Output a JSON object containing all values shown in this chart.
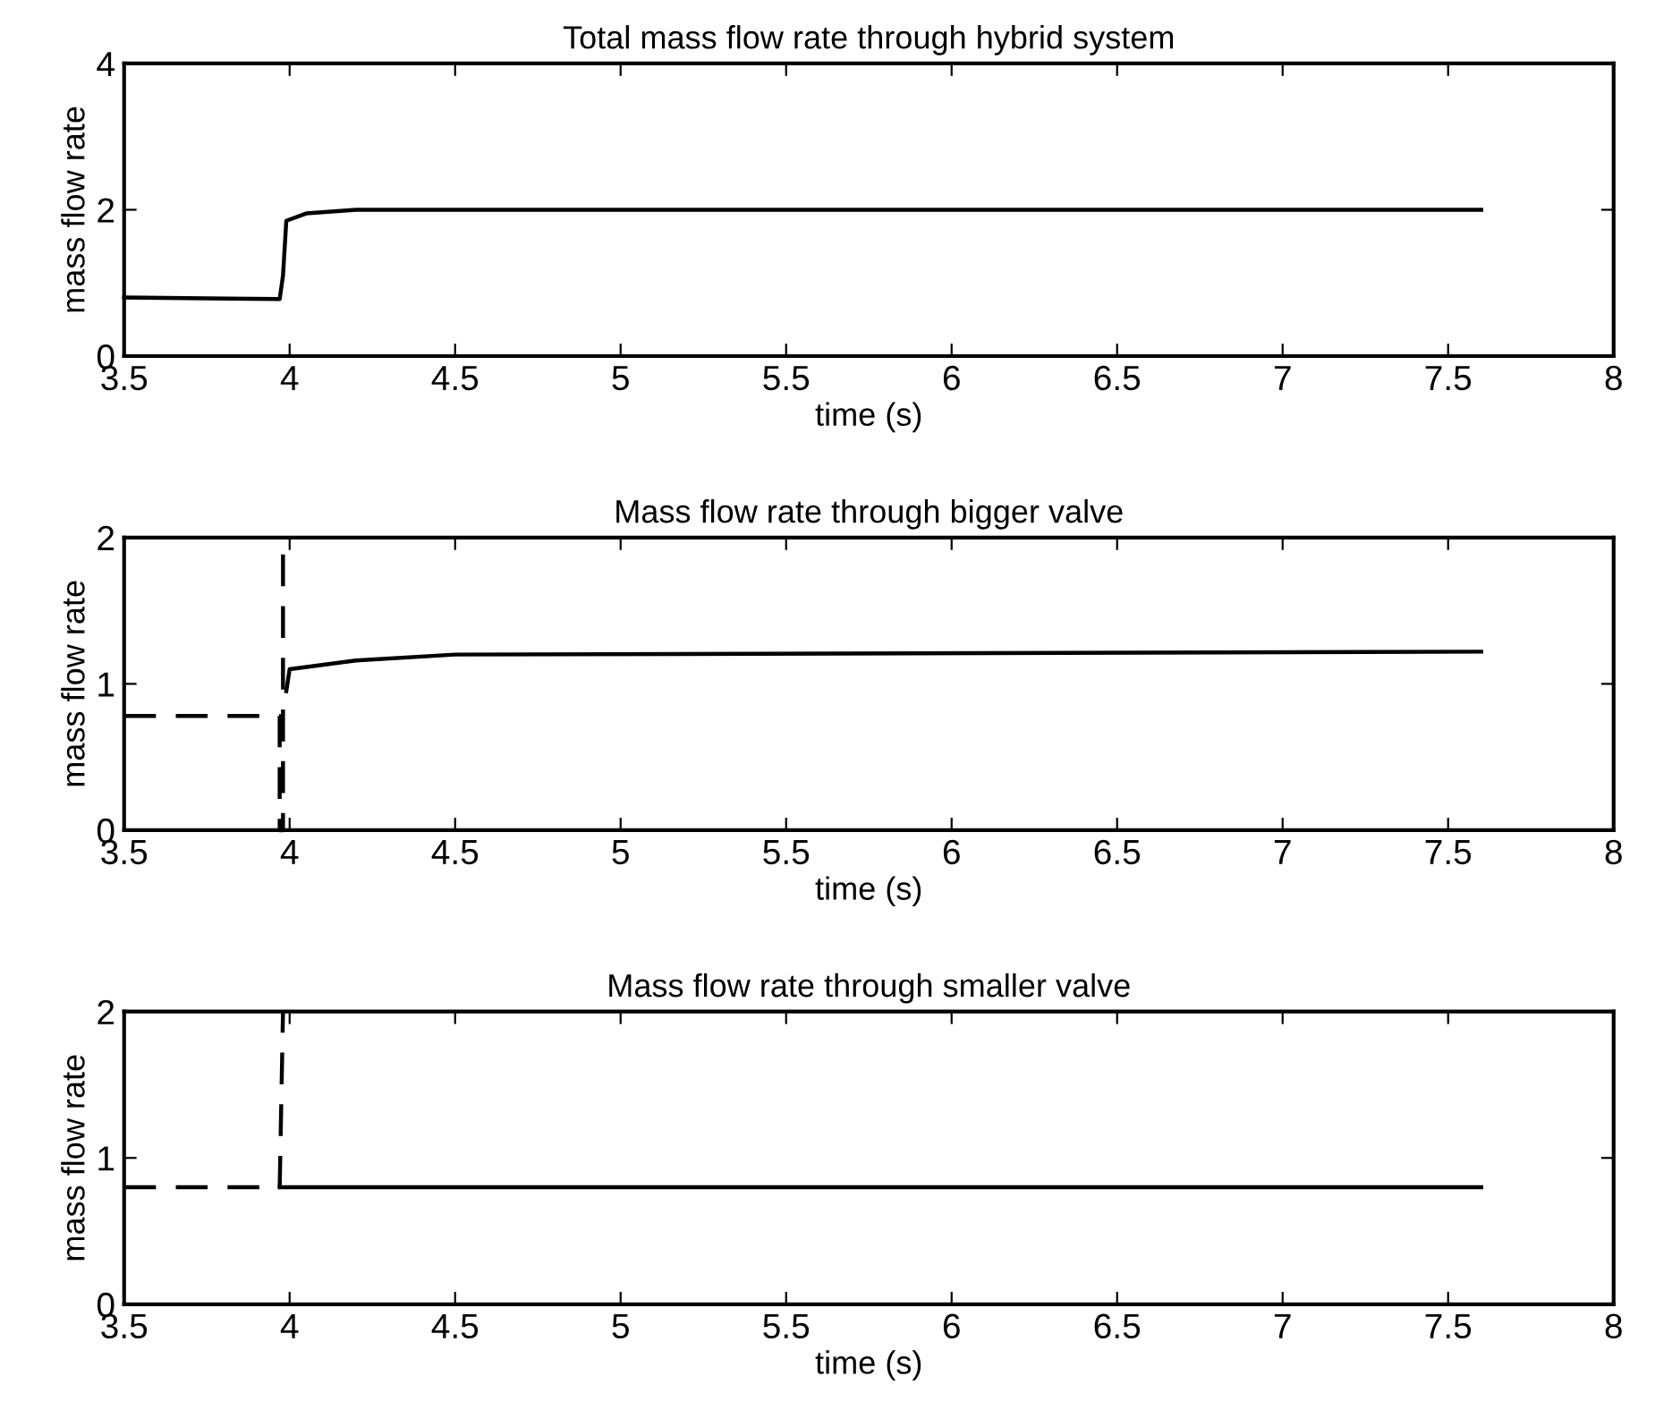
{
  "chart_data": [
    {
      "type": "line",
      "title": "Total mass flow rate through hybrid system",
      "xlabel": "time (s)",
      "ylabel": "mass flow rate",
      "xlim": [
        3.5,
        8
      ],
      "ylim": [
        0,
        4
      ],
      "xticks": [
        3.5,
        4,
        4.5,
        5,
        5.5,
        6,
        6.5,
        7,
        7.5,
        8
      ],
      "yticks": [
        0,
        2,
        4
      ],
      "grid": false,
      "series": [
        {
          "color": "#000000",
          "line_style": "solid",
          "x": [
            3.5,
            3.97,
            3.98,
            3.99,
            4.05,
            4.2,
            7.6
          ],
          "values": [
            0.8,
            0.78,
            1.1,
            1.85,
            1.95,
            2.0,
            2.0
          ]
        }
      ]
    },
    {
      "type": "line",
      "title": "Mass flow rate through bigger valve",
      "xlabel": "time (s)",
      "ylabel": "mass flow rate",
      "xlim": [
        3.5,
        8
      ],
      "ylim": [
        0,
        2
      ],
      "xticks": [
        3.5,
        4,
        4.5,
        5,
        5.5,
        6,
        6.5,
        7,
        7.5,
        8
      ],
      "yticks": [
        0,
        1,
        2
      ],
      "grid": false,
      "series": [
        {
          "color": "#000000",
          "line_style": "dashed",
          "x": [
            3.5,
            3.97,
            3.97,
            3.98,
            3.98
          ],
          "values": [
            0.78,
            0.78,
            0,
            0,
            2
          ]
        },
        {
          "color": "#000000",
          "line_style": "solid",
          "x": [
            3.99,
            4.0,
            4.2,
            4.5,
            7.6
          ],
          "values": [
            0.95,
            1.1,
            1.16,
            1.2,
            1.22
          ]
        }
      ]
    },
    {
      "type": "line",
      "title": "Mass flow rate through smaller valve",
      "xlabel": "time (s)",
      "ylabel": "mass flow rate",
      "xlim": [
        3.5,
        8
      ],
      "ylim": [
        0,
        2
      ],
      "xticks": [
        3.5,
        4,
        4.5,
        5,
        5.5,
        6,
        6.5,
        7,
        7.5,
        8
      ],
      "yticks": [
        0,
        1,
        2
      ],
      "grid": false,
      "series": [
        {
          "color": "#000000",
          "line_style": "dashed",
          "x": [
            3.5,
            3.97,
            3.98
          ],
          "values": [
            0.8,
            0.8,
            2
          ]
        },
        {
          "color": "#000000",
          "line_style": "solid",
          "x": [
            3.97,
            7.6
          ],
          "values": [
            0.8,
            0.8
          ]
        }
      ]
    }
  ]
}
